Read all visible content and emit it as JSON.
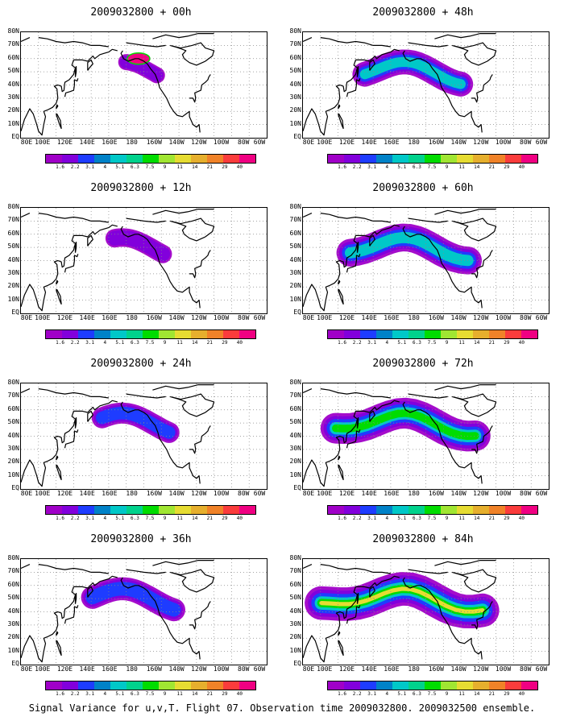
{
  "panels": [
    {
      "title": "2009032800 + 00h",
      "intensity": 0.0
    },
    {
      "title": "2009032800 + 48h",
      "intensity": 0.45
    },
    {
      "title": "2009032800 + 12h",
      "intensity": 0.12
    },
    {
      "title": "2009032800 + 60h",
      "intensity": 0.6
    },
    {
      "title": "2009032800 + 24h",
      "intensity": 0.25
    },
    {
      "title": "2009032800 + 72h",
      "intensity": 0.75
    },
    {
      "title": "2009032800 + 36h",
      "intensity": 0.35
    },
    {
      "title": "2009032800 + 84h",
      "intensity": 0.9
    }
  ],
  "lat_labels": [
    "80N",
    "70N",
    "60N",
    "50N",
    "40N",
    "30N",
    "20N",
    "10N",
    "EQ"
  ],
  "lon_labels": [
    "80E",
    "100E",
    "120E",
    "140E",
    "160E",
    "180",
    "160W",
    "140W",
    "120W",
    "100W",
    "80W",
    "60W"
  ],
  "legend": {
    "labels": [
      "1.6",
      "2.2",
      "3.1",
      "4",
      "5.1",
      "6.3",
      "7.5",
      "9",
      "11",
      "14",
      "21",
      "29",
      "40"
    ],
    "colors": [
      "#a000c8",
      "#8200dc",
      "#1e3cff",
      "#0082c8",
      "#00c8c8",
      "#00d28c",
      "#00dc00",
      "#a0e632",
      "#e6dc32",
      "#e6af2d",
      "#f08228",
      "#fa3c3c",
      "#f00082"
    ]
  },
  "caption": "Signal Variance for u,v,T. Flight 07. Observation time 2009032800. 2009032500 ensemble."
}
